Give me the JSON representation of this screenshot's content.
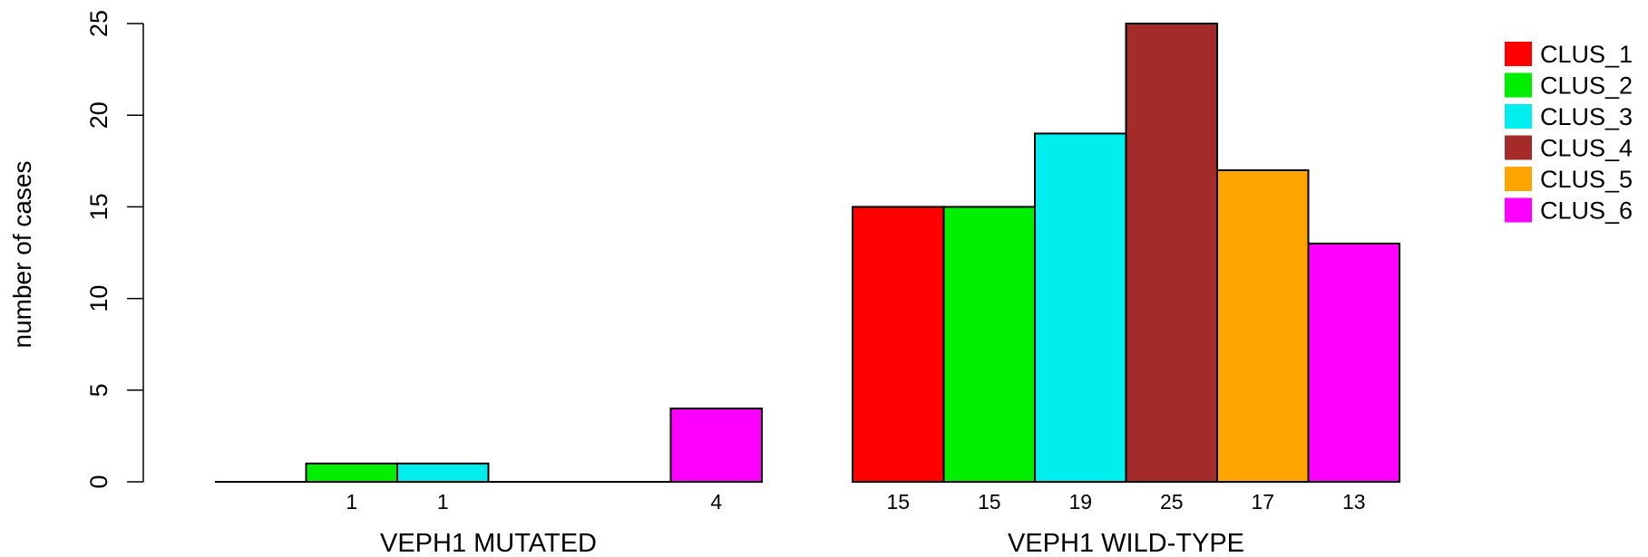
{
  "chart_data": {
    "type": "bar",
    "ylabel": "number of cases",
    "ylim": [
      0,
      25
    ],
    "yticks": [
      0,
      5,
      10,
      15,
      20,
      25
    ],
    "groups": [
      "VEPH1 MUTATED",
      "VEPH1 WILD-TYPE"
    ],
    "series": [
      {
        "name": "CLUS_1",
        "color": "#ff0000",
        "values": [
          0,
          15
        ]
      },
      {
        "name": "CLUS_2",
        "color": "#00ee00",
        "values": [
          1,
          15
        ]
      },
      {
        "name": "CLUS_3",
        "color": "#00eeee",
        "values": [
          1,
          19
        ]
      },
      {
        "name": "CLUS_4",
        "color": "#a52a2a",
        "values": [
          0,
          25
        ]
      },
      {
        "name": "CLUS_5",
        "color": "#ffa500",
        "values": [
          0,
          17
        ]
      },
      {
        "name": "CLUS_6",
        "color": "#ff00ff",
        "values": [
          4,
          13
        ]
      }
    ],
    "legend_position": "top-right",
    "grid": false
  }
}
